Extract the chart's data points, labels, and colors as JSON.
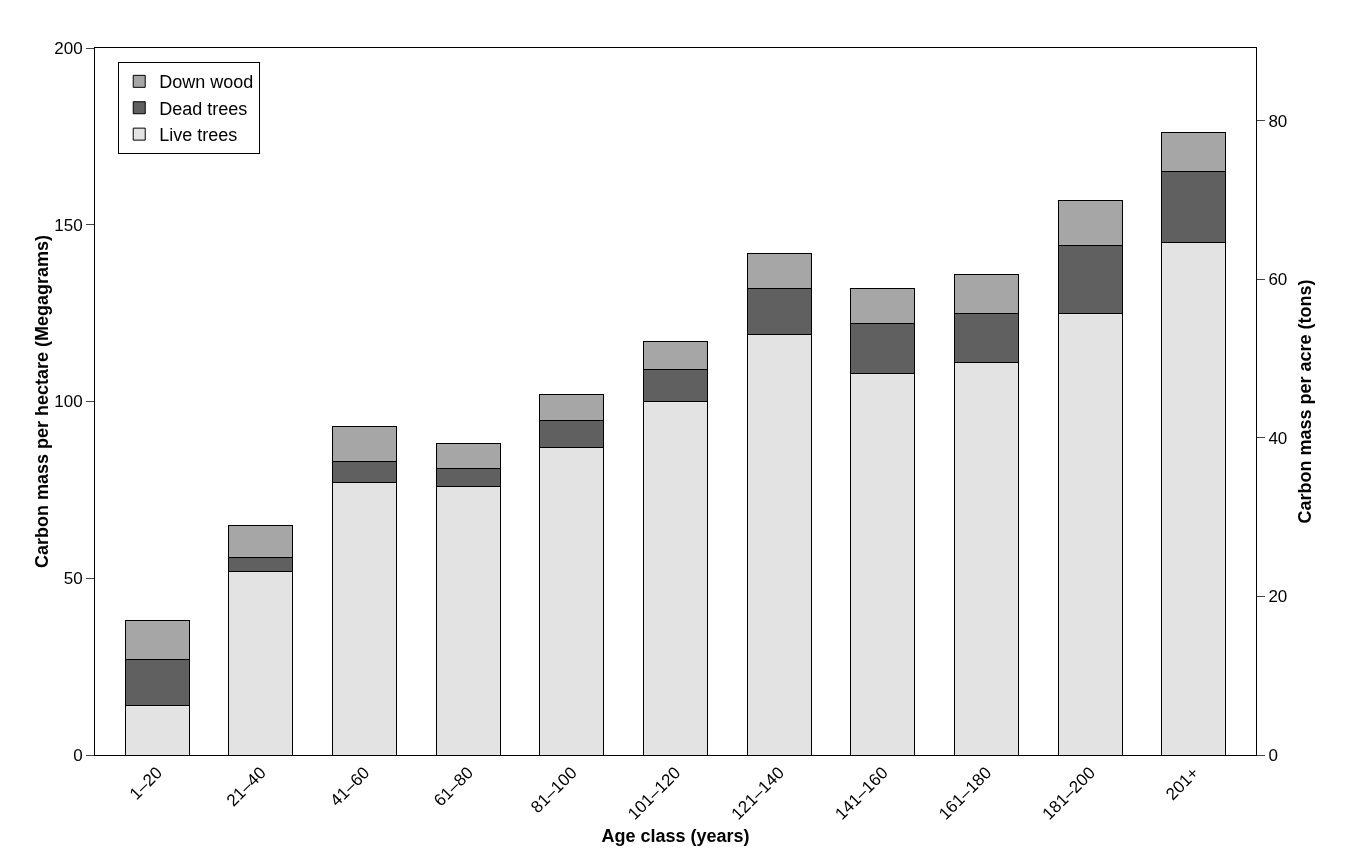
{
  "chart_data": {
    "type": "bar",
    "xlabel": "Age class (years)",
    "ylabel": "Carbon mass per hectare (Megagrams)",
    "y2label": "Carbon mass per acre (tons)",
    "categories": [
      "1–20",
      "21–40",
      "41–60",
      "61–80",
      "81–100",
      "101–120",
      "121–140",
      "141–160",
      "161–180",
      "181–200",
      "201+"
    ],
    "stacked": true,
    "series": [
      {
        "name": "Live trees",
        "color": "#e3e3e3",
        "values": [
          14,
          52,
          77,
          76,
          87,
          100,
          119,
          108,
          111,
          125,
          145
        ]
      },
      {
        "name": "Dead trees",
        "color": "#606060",
        "values": [
          13,
          4,
          6,
          5,
          7.5,
          9,
          13,
          14,
          14,
          19,
          20
        ]
      },
      {
        "name": "Down wood",
        "color": "#a6a6a6",
        "values": [
          11,
          9,
          10,
          7,
          7.5,
          8,
          10,
          10,
          11,
          13,
          11
        ]
      }
    ],
    "ylim": [
      0,
      200
    ],
    "yticks": [
      0,
      50,
      100,
      150,
      200
    ],
    "y2lim": [
      0,
      89.2
    ],
    "y2ticks": [
      0,
      20,
      40,
      60,
      80
    ],
    "grid": false,
    "legend": "top left"
  }
}
